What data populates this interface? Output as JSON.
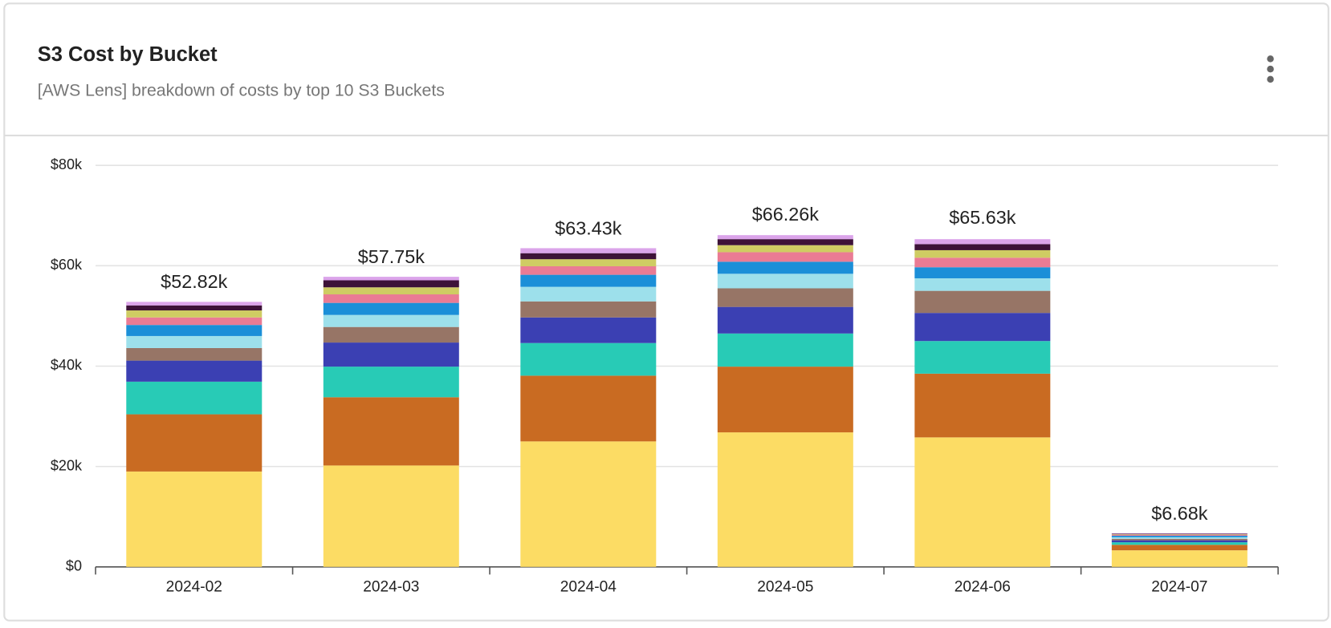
{
  "chart_data": {
    "type": "stacked_bar",
    "title": "S3 Cost by Bucket",
    "subtitle": "[AWS Lens] breakdown of costs by top 10 S3 Buckets",
    "categories": [
      "2024-02",
      "2024-03",
      "2024-04",
      "2024-05",
      "2024-06",
      "2024-07"
    ],
    "series": [
      {
        "color": "#fcdc64",
        "values": [
          19000,
          20200,
          25000,
          26800,
          25800,
          3300
        ]
      },
      {
        "color": "#c96b22",
        "values": [
          11400,
          13600,
          13100,
          13100,
          12700,
          1100
        ]
      },
      {
        "color": "#28cbb6",
        "values": [
          6500,
          6100,
          6500,
          6600,
          6500,
          500
        ]
      },
      {
        "color": "#3b40b3",
        "values": [
          4200,
          4800,
          5100,
          5300,
          5600,
          400
        ]
      },
      {
        "color": "#977566",
        "values": [
          2500,
          3100,
          3200,
          3700,
          4400,
          300
        ]
      },
      {
        "color": "#9de0eb",
        "values": [
          2400,
          2400,
          2900,
          2900,
          2500,
          300
        ]
      },
      {
        "color": "#1b8fd8",
        "values": [
          2200,
          2400,
          2400,
          2400,
          2200,
          300
        ]
      },
      {
        "color": "#ea7b94",
        "values": [
          1500,
          1700,
          1700,
          1900,
          1900,
          200
        ]
      },
      {
        "color": "#cfcc63",
        "values": [
          1400,
          1400,
          1400,
          1400,
          1500,
          100
        ]
      },
      {
        "color": "#3d1238",
        "values": [
          1000,
          1400,
          1200,
          1200,
          1200,
          100
        ]
      },
      {
        "color": "#dba4ea",
        "values": [
          700,
          700,
          1000,
          800,
          1000,
          100
        ]
      }
    ],
    "totals": {
      "values": [
        52820,
        57750,
        63430,
        66260,
        65630,
        6680
      ],
      "value_labels": [
        "$52.82k",
        "$57.75k",
        "$63.43k",
        "$66.26k",
        "$65.63k",
        "$6.68k"
      ]
    },
    "ylim": [
      0,
      80000
    ],
    "yticks": [
      {
        "value": 0,
        "label": "$0"
      },
      {
        "value": 20000,
        "label": "$20k"
      },
      {
        "value": 40000,
        "label": "$40k"
      },
      {
        "value": 60000,
        "label": "$60k"
      },
      {
        "value": 80000,
        "label": "$80k"
      }
    ],
    "grid": true
  }
}
